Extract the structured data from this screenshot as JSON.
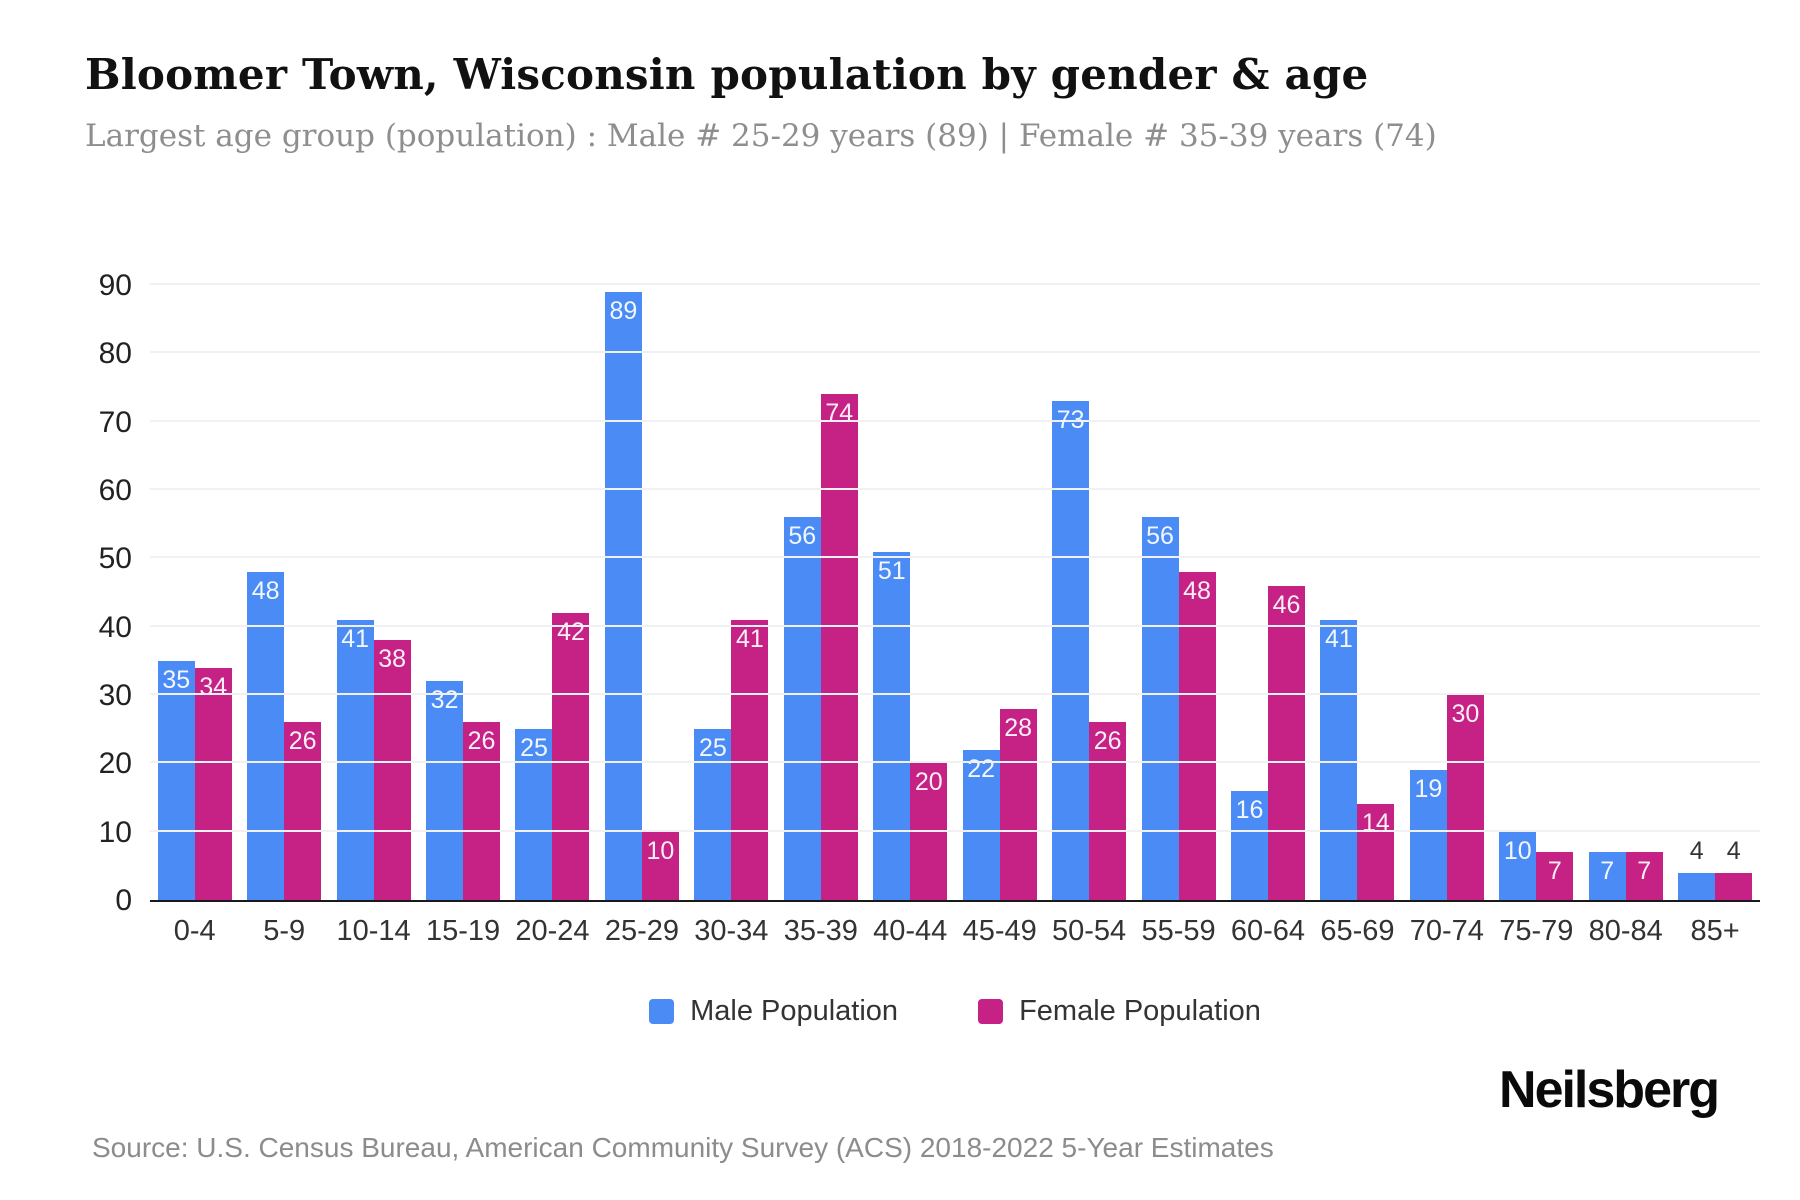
{
  "header": {
    "title": "Bloomer Town, Wisconsin population by gender & age",
    "subtitle": "Largest age group (population) : Male # 25-29 years (89) | Female # 35-39 years (74)"
  },
  "chart_data": {
    "type": "bar",
    "title": "Bloomer Town, Wisconsin population by gender & age",
    "categories": [
      "0-4",
      "5-9",
      "10-14",
      "15-19",
      "20-24",
      "25-29",
      "30-34",
      "35-39",
      "40-44",
      "45-49",
      "50-54",
      "55-59",
      "60-64",
      "65-69",
      "70-74",
      "75-79",
      "80-84",
      "85+"
    ],
    "series": [
      {
        "name": "Male Population",
        "color": "#4b8bf5",
        "values": [
          35,
          48,
          41,
          32,
          25,
          89,
          25,
          56,
          51,
          22,
          73,
          56,
          16,
          41,
          19,
          10,
          7,
          4
        ]
      },
      {
        "name": "Female Population",
        "color": "#c62184",
        "values": [
          34,
          26,
          38,
          26,
          42,
          10,
          41,
          74,
          20,
          28,
          26,
          48,
          46,
          14,
          30,
          7,
          7,
          4
        ]
      }
    ],
    "xlabel": "",
    "ylabel": "",
    "ylim": [
      0,
      90
    ],
    "yticks": [
      0,
      10,
      20,
      30,
      40,
      50,
      60,
      70,
      80,
      90
    ],
    "grid": "horizontal",
    "legend_position": "bottom"
  },
  "legend": {
    "items": [
      {
        "label": "Male Population",
        "color": "#4b8bf5"
      },
      {
        "label": "Female Population",
        "color": "#c62184"
      }
    ]
  },
  "footer": {
    "source": "Source: U.S. Census Bureau, American Community Survey (ACS) 2018-2022 5-Year Estimates",
    "logo": "Neilsberg"
  }
}
